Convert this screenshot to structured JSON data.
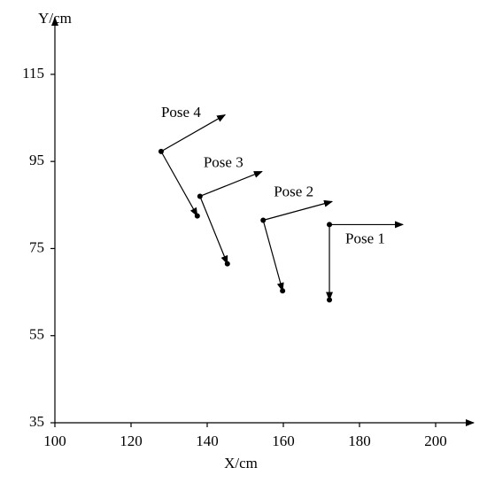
{
  "chart_data": {
    "type": "pose",
    "xlabel": "X/cm",
    "ylabel": "Y/cm",
    "xlim": [
      100,
      210
    ],
    "ylim": [
      35,
      128
    ],
    "xticks": [
      100,
      120,
      140,
      160,
      180,
      200
    ],
    "yticks": [
      35,
      55,
      75,
      95,
      115
    ],
    "color": "#000000",
    "poses": [
      {
        "name": "Pose 1",
        "x": 172.1,
        "y": 80.5,
        "arrow": {
          "x": 191.4,
          "y": 80.5
        },
        "end": {
          "x": 172.1,
          "y": 63.2
        }
      },
      {
        "name": "Pose 2",
        "x": 154.7,
        "y": 81.5,
        "arrow": {
          "x": 172.8,
          "y": 85.8
        },
        "end": {
          "x": 159.8,
          "y": 65.3
        }
      },
      {
        "name": "Pose 3",
        "x": 138.1,
        "y": 87.0,
        "arrow": {
          "x": 154.4,
          "y": 92.7
        },
        "end": {
          "x": 145.3,
          "y": 71.5
        }
      },
      {
        "name": "Pose 4",
        "x": 127.9,
        "y": 97.3,
        "arrow": {
          "x": 144.7,
          "y": 105.7
        },
        "end": {
          "x": 137.4,
          "y": 82.5
        }
      }
    ]
  }
}
